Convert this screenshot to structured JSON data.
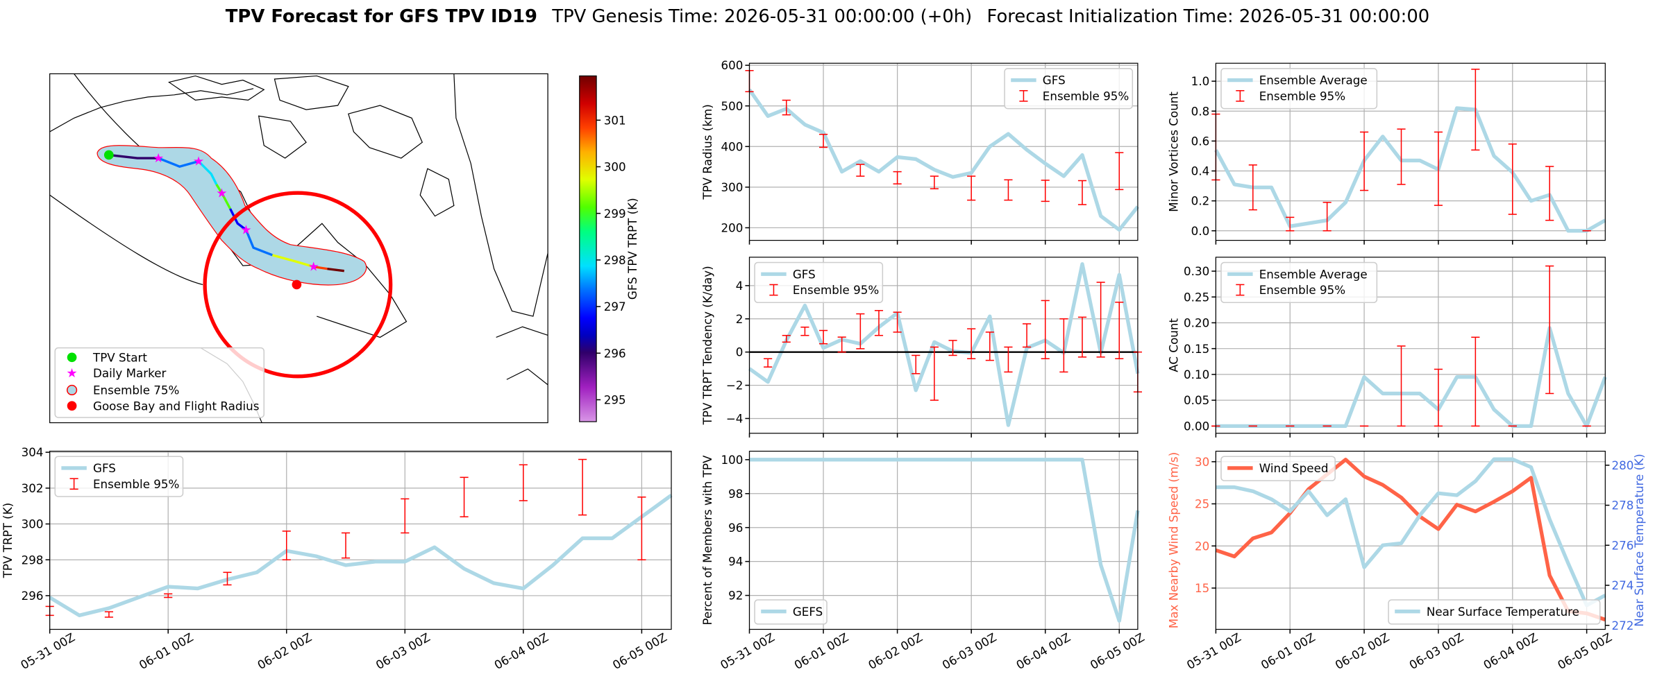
{
  "header": {
    "title": "TPV Forecast for GFS TPV ID19",
    "genesis": "TPV Genesis Time: 2026-05-31 00:00:00 (+0h)",
    "init": "Forecast Initialization Time: 2026-05-31 00:00:00"
  },
  "chart_data": [
    {
      "type": "map",
      "legend": [
        "TPV Start",
        "Daily Marker",
        "Ensemble 75%",
        "Goose Bay and Flight Radius"
      ],
      "colorbar": {
        "label": "GFS TPV TRPT (K)",
        "clim": [
          294.53,
          301.95
        ],
        "ticks": [
          295,
          296,
          297,
          298,
          299,
          300,
          301
        ]
      }
    },
    {
      "type": "line",
      "ylabel": "TPV TRPT (K)",
      "x": [
        0,
        6,
        12,
        18,
        24,
        30,
        36,
        42,
        48,
        54,
        60,
        66,
        72,
        78,
        84,
        90,
        96,
        102,
        108,
        114,
        120,
        126
      ],
      "xlim": [
        0,
        126
      ],
      "xticks": [
        {
          "value": 0,
          "label": "05-31 00Z"
        },
        {
          "value": 24,
          "label": "06-01 00Z"
        },
        {
          "value": 48,
          "label": "06-02 00Z"
        },
        {
          "value": 72,
          "label": "06-03 00Z"
        },
        {
          "value": 96,
          "label": "06-04 00Z"
        },
        {
          "value": 120,
          "label": "06-05 00Z"
        }
      ],
      "ylim": [
        294.12,
        304.06
      ],
      "yticks": [
        296,
        298,
        300,
        302,
        304
      ],
      "grid": true,
      "legend": "upper left",
      "series": [
        {
          "name": "GFS",
          "color": "#add8e6",
          "values": [
            295.9,
            294.9,
            295.3,
            295.9,
            296.5,
            296.4,
            296.9,
            297.3,
            298.5,
            298.2,
            297.7,
            297.9,
            297.9,
            298.7,
            297.5,
            296.7,
            296.4,
            297.7,
            299.2,
            299.2,
            300.4,
            301.6
          ]
        }
      ],
      "errorbars": {
        "name": "Ensemble 95%",
        "color": "#ff0000",
        "x": [
          0,
          12,
          24,
          36,
          48,
          60,
          72,
          84,
          96,
          108,
          120
        ],
        "low": [
          294.9,
          294.8,
          295.9,
          296.6,
          298.0,
          298.1,
          299.5,
          300.4,
          301.3,
          300.5,
          298.0
        ],
        "high": [
          295.4,
          295.1,
          296.1,
          297.3,
          299.6,
          299.5,
          301.4,
          302.6,
          303.3,
          303.6,
          301.5
        ]
      }
    },
    {
      "type": "line",
      "ylabel": "TPV Radius (km)",
      "x": [
        0,
        6,
        12,
        18,
        24,
        30,
        36,
        42,
        48,
        54,
        60,
        66,
        72,
        78,
        84,
        90,
        96,
        102,
        108,
        114,
        120,
        126
      ],
      "xlim": [
        0,
        126
      ],
      "xticks": [
        0,
        24,
        48,
        72,
        96,
        120
      ],
      "ylim": [
        169,
        605
      ],
      "yticks": [
        200,
        300,
        400,
        500,
        600
      ],
      "grid": true,
      "legend": "upper right",
      "series": [
        {
          "name": "GFS",
          "color": "#add8e6",
          "values": [
            540,
            475,
            493,
            454,
            434,
            338,
            364,
            338,
            374,
            369,
            343,
            325,
            335,
            400,
            431,
            392,
            358,
            327,
            379,
            229,
            195,
            252
          ]
        }
      ],
      "errorbars": {
        "name": "Ensemble 95%",
        "color": "#ff0000",
        "x": [
          0,
          12,
          24,
          36,
          48,
          60,
          72,
          84,
          96,
          108,
          120
        ],
        "low": [
          535,
          478,
          398,
          327,
          308,
          296,
          268,
          268,
          265,
          257,
          294
        ],
        "high": [
          587,
          514,
          430,
          356,
          338,
          327,
          327,
          318,
          317,
          316,
          385
        ]
      }
    },
    {
      "type": "line",
      "ylabel": "TPV TRPT Tendency (K/day)",
      "x": [
        0,
        6,
        12,
        18,
        24,
        30,
        36,
        42,
        48,
        54,
        60,
        66,
        72,
        78,
        84,
        90,
        96,
        102,
        108,
        114,
        120,
        126
      ],
      "xlim": [
        0,
        126
      ],
      "xticks": [
        0,
        24,
        48,
        72,
        96,
        120
      ],
      "ylim": [
        -4.89,
        5.71
      ],
      "yticks": [
        {
          "value": -4,
          "label": "−4"
        },
        {
          "value": -2,
          "label": "−2"
        },
        0,
        2,
        4
      ],
      "grid": true,
      "legend": "upper left",
      "hline": 0,
      "series": [
        {
          "name": "GFS",
          "color": "#add8e6",
          "values": [
            -1.0,
            -1.8,
            0.7,
            2.8,
            0.25,
            0.75,
            0.5,
            1.5,
            2.35,
            -2.3,
            0.6,
            0.05,
            -0.05,
            2.15,
            -4.4,
            0.25,
            0.7,
            -0.05,
            5.3,
            -0.05,
            4.65,
            -1.3
          ]
        }
      ],
      "errorbars": {
        "name": "Ensemble 95%",
        "color": "#ff0000",
        "x": [
          6,
          12,
          18,
          24,
          30,
          36,
          42,
          48,
          54,
          60,
          66,
          72,
          78,
          84,
          90,
          96,
          102,
          108,
          114,
          120,
          126
        ],
        "low": [
          -0.9,
          0.6,
          1.0,
          0.5,
          0.0,
          0.2,
          1.0,
          1.2,
          -1.3,
          -2.9,
          -0.2,
          -0.4,
          -0.5,
          -1.2,
          0.3,
          -0.4,
          -1.2,
          -0.3,
          -0.3,
          -0.4,
          -2.4
        ],
        "high": [
          -0.4,
          1.0,
          1.5,
          1.3,
          0.9,
          2.3,
          2.5,
          2.4,
          -0.2,
          0.3,
          0.7,
          1.4,
          1.2,
          0.3,
          1.7,
          3.1,
          2.0,
          2.1,
          4.2,
          3.0,
          0.0
        ]
      }
    },
    {
      "type": "line",
      "ylabel": "Percent of Members with TPV",
      "x": [
        0,
        6,
        12,
        18,
        24,
        30,
        36,
        42,
        48,
        54,
        60,
        66,
        72,
        78,
        84,
        90,
        96,
        102,
        108,
        114,
        120,
        126
      ],
      "xlim": [
        0,
        126
      ],
      "xticks": [
        {
          "value": 0,
          "label": "05-31 00Z"
        },
        {
          "value": 24,
          "label": "06-01 00Z"
        },
        {
          "value": 48,
          "label": "06-02 00Z"
        },
        {
          "value": 72,
          "label": "06-03 00Z"
        },
        {
          "value": 96,
          "label": "06-04 00Z"
        },
        {
          "value": 120,
          "label": "06-05 00Z"
        }
      ],
      "ylim": [
        90.0,
        100.5
      ],
      "yticks": [
        92,
        94,
        96,
        98,
        100
      ],
      "grid": true,
      "legend": "lower left",
      "series": [
        {
          "name": "GEFS",
          "color": "#add8e6",
          "values": [
            100,
            100,
            100,
            100,
            100,
            100,
            100,
            100,
            100,
            100,
            100,
            100,
            100,
            100,
            100,
            100,
            100,
            100,
            100,
            93.8,
            90.5,
            97.0
          ]
        }
      ]
    },
    {
      "type": "line",
      "ylabel": "Minor Vortices Count",
      "x": [
        0,
        6,
        12,
        18,
        24,
        30,
        36,
        42,
        48,
        54,
        60,
        66,
        72,
        78,
        84,
        90,
        96,
        102,
        108,
        114,
        120,
        126
      ],
      "xlim": [
        0,
        126
      ],
      "xticks": [
        0,
        24,
        48,
        72,
        96,
        120
      ],
      "ylim": [
        -0.064,
        1.12
      ],
      "yticks": [
        {
          "value": 0,
          "label": "0.0"
        },
        0.2,
        0.4,
        0.6,
        0.8,
        {
          "value": 1,
          "label": "1.0"
        }
      ],
      "grid": true,
      "legend": "upper left",
      "series": [
        {
          "name": "Ensemble Average",
          "color": "#add8e6",
          "values": [
            0.54,
            0.31,
            0.29,
            0.29,
            0.03,
            0.05,
            0.07,
            0.19,
            0.47,
            0.63,
            0.47,
            0.47,
            0.41,
            0.82,
            0.81,
            0.5,
            0.39,
            0.2,
            0.24,
            0.0,
            0.0,
            0.07
          ]
        }
      ],
      "errorbars": {
        "name": "Ensemble 95%",
        "color": "#ff0000",
        "x": [
          0,
          12,
          24,
          36,
          48,
          60,
          72,
          84,
          96,
          108,
          120
        ],
        "low": [
          0.34,
          0.14,
          0.0,
          0.0,
          0.27,
          0.31,
          0.17,
          0.54,
          0.11,
          0.07,
          0.0
        ],
        "high": [
          0.78,
          0.44,
          0.09,
          0.19,
          0.66,
          0.68,
          0.66,
          1.08,
          0.58,
          0.43,
          0.0
        ]
      }
    },
    {
      "type": "line",
      "ylabel": "AC Count",
      "x": [
        0,
        6,
        12,
        18,
        24,
        30,
        36,
        42,
        48,
        54,
        60,
        66,
        72,
        78,
        84,
        90,
        96,
        102,
        108,
        114,
        120,
        126
      ],
      "xlim": [
        0,
        126
      ],
      "xticks": [
        0,
        24,
        48,
        72,
        96,
        120
      ],
      "ylim": [
        -0.014,
        0.327
      ],
      "yticks": [
        {
          "value": 0,
          "label": "0.00"
        },
        {
          "value": 0.05,
          "label": "0.05"
        },
        {
          "value": 0.1,
          "label": "0.10"
        },
        {
          "value": 0.15,
          "label": "0.15"
        },
        {
          "value": 0.2,
          "label": "0.20"
        },
        {
          "value": 0.25,
          "label": "0.25"
        },
        {
          "value": 0.3,
          "label": "0.30"
        }
      ],
      "grid": true,
      "legend": "upper left",
      "series": [
        {
          "name": "Ensemble Average",
          "color": "#add8e6",
          "values": [
            0,
            0,
            0,
            0,
            0,
            0,
            0,
            0,
            0.095,
            0.063,
            0.063,
            0.063,
            0.032,
            0.095,
            0.095,
            0.032,
            0,
            0,
            0.19,
            0.063,
            0,
            0.095
          ]
        }
      ],
      "errorbars": {
        "name": "Ensemble 95%",
        "color": "#ff0000",
        "x": [
          0,
          12,
          24,
          36,
          48,
          60,
          72,
          84,
          96,
          108,
          120
        ],
        "low": [
          0,
          0,
          0,
          0,
          0,
          0,
          0,
          0,
          0,
          0.063,
          0
        ],
        "high": [
          0,
          0,
          0,
          0,
          0,
          0.155,
          0.11,
          0.172,
          0,
          0.31,
          0
        ]
      }
    },
    {
      "type": "line",
      "ylabel": "Max Nearby Wind Speed (m/s)",
      "ylabel_color": "#ff6347",
      "y2label": "Near Surface Temperature (K)",
      "y2label_color": "#4169e1",
      "x": [
        0,
        6,
        12,
        18,
        24,
        30,
        36,
        42,
        48,
        54,
        60,
        66,
        72,
        78,
        84,
        90,
        96,
        102,
        108,
        114,
        120,
        126
      ],
      "xlim": [
        0,
        126
      ],
      "xticks": [
        {
          "value": 0,
          "label": "05-31 00Z"
        },
        {
          "value": 24,
          "label": "06-01 00Z"
        },
        {
          "value": 48,
          "label": "06-02 00Z"
        },
        {
          "value": 72,
          "label": "06-03 00Z"
        },
        {
          "value": 96,
          "label": "06-04 00Z"
        },
        {
          "value": 120,
          "label": "06-05 00Z"
        }
      ],
      "ylim": [
        10.1,
        31.25
      ],
      "yticks": [
        15,
        20,
        25,
        30
      ],
      "y2lim": [
        271.8,
        280.7
      ],
      "y2ticks": [
        272,
        274,
        276,
        278,
        280
      ],
      "grid": true,
      "series": [
        {
          "name": "Wind Speed",
          "color": "#ff6347",
          "legend": "upper left",
          "values": [
            19.5,
            18.75,
            20.9,
            21.6,
            23.9,
            26.75,
            28.5,
            30.25,
            28.25,
            27.25,
            25.75,
            23.5,
            22.0,
            24.9,
            24.1,
            25.25,
            26.5,
            28.1,
            16.5,
            12.25,
            12.0,
            11.25
          ]
        },
        {
          "name": "Near Surface Temperature",
          "color": "#add8e6",
          "axis": "y2",
          "legend": "lower right",
          "values": [
            278.9,
            278.9,
            278.7,
            278.3,
            277.7,
            278.7,
            277.5,
            278.3,
            274.9,
            276.0,
            276.1,
            277.5,
            278.6,
            278.5,
            279.2,
            280.3,
            280.3,
            279.9,
            277.3,
            275.1,
            273.0,
            273.5
          ]
        }
      ]
    }
  ]
}
